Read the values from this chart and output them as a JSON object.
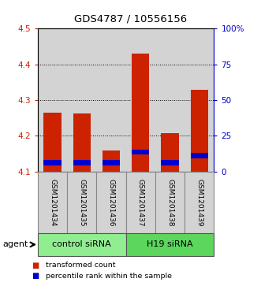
{
  "title": "GDS4787 / 10556156",
  "samples": [
    "GSM1201434",
    "GSM1201435",
    "GSM1201436",
    "GSM1201437",
    "GSM1201438",
    "GSM1201439"
  ],
  "red_bottoms": [
    4.1,
    4.1,
    4.1,
    4.1,
    4.1,
    4.1
  ],
  "red_tops": [
    4.265,
    4.263,
    4.16,
    4.43,
    4.208,
    4.328
  ],
  "blue_bottoms": [
    4.118,
    4.118,
    4.118,
    4.147,
    4.118,
    4.138
  ],
  "blue_tops": [
    4.133,
    4.133,
    4.133,
    4.162,
    4.133,
    4.153
  ],
  "ylim": [
    4.1,
    4.5
  ],
  "yticks_left": [
    4.1,
    4.2,
    4.3,
    4.4,
    4.5
  ],
  "yticks_right": [
    0,
    25,
    50,
    75,
    100
  ],
  "ytick_labels_right": [
    "0",
    "25",
    "50",
    "75",
    "100%"
  ],
  "groups": [
    {
      "label": "control siRNA",
      "start": 0,
      "end": 3,
      "color": "#90ee90"
    },
    {
      "label": "H19 siRNA",
      "start": 3,
      "end": 6,
      "color": "#5cd65c"
    }
  ],
  "agent_label": "agent",
  "legend": [
    {
      "label": "transformed count",
      "color": "#cc2200"
    },
    {
      "label": "percentile rank within the sample",
      "color": "#0000cc"
    }
  ],
  "bar_width": 0.6,
  "bar_color_red": "#cc2200",
  "bar_color_blue": "#0000cc",
  "left_tick_color": "#cc2200",
  "right_tick_color": "#0000cc",
  "grid_color": "#000000",
  "background_color": "#ffffff",
  "bar_bg_color": "#d3d3d3",
  "group_border_color": "#555555",
  "grid_yticks": [
    4.2,
    4.3,
    4.4
  ]
}
